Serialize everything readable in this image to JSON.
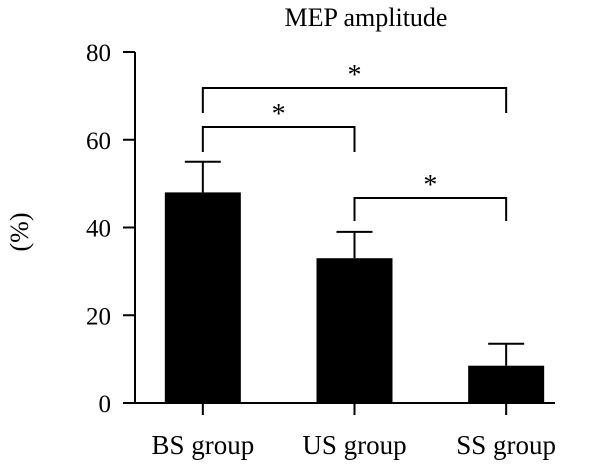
{
  "chart_data": {
    "type": "bar",
    "title": "MEP amplitude",
    "ylabel": "(%)",
    "xlabel": "",
    "categories": [
      "BS group",
      "US group",
      "SS group"
    ],
    "values": [
      48,
      33,
      8.5
    ],
    "error_upper": [
      55,
      39,
      13.5
    ],
    "ylim": [
      0,
      80
    ],
    "yticks": [
      "0",
      "20",
      "40",
      "60",
      "80"
    ],
    "grid": false,
    "bar_color": "#000000",
    "significance": [
      {
        "from": 0,
        "to": 2,
        "label": "*"
      },
      {
        "from": 0,
        "to": 1,
        "label": "*"
      },
      {
        "from": 1,
        "to": 2,
        "label": "*"
      }
    ]
  }
}
